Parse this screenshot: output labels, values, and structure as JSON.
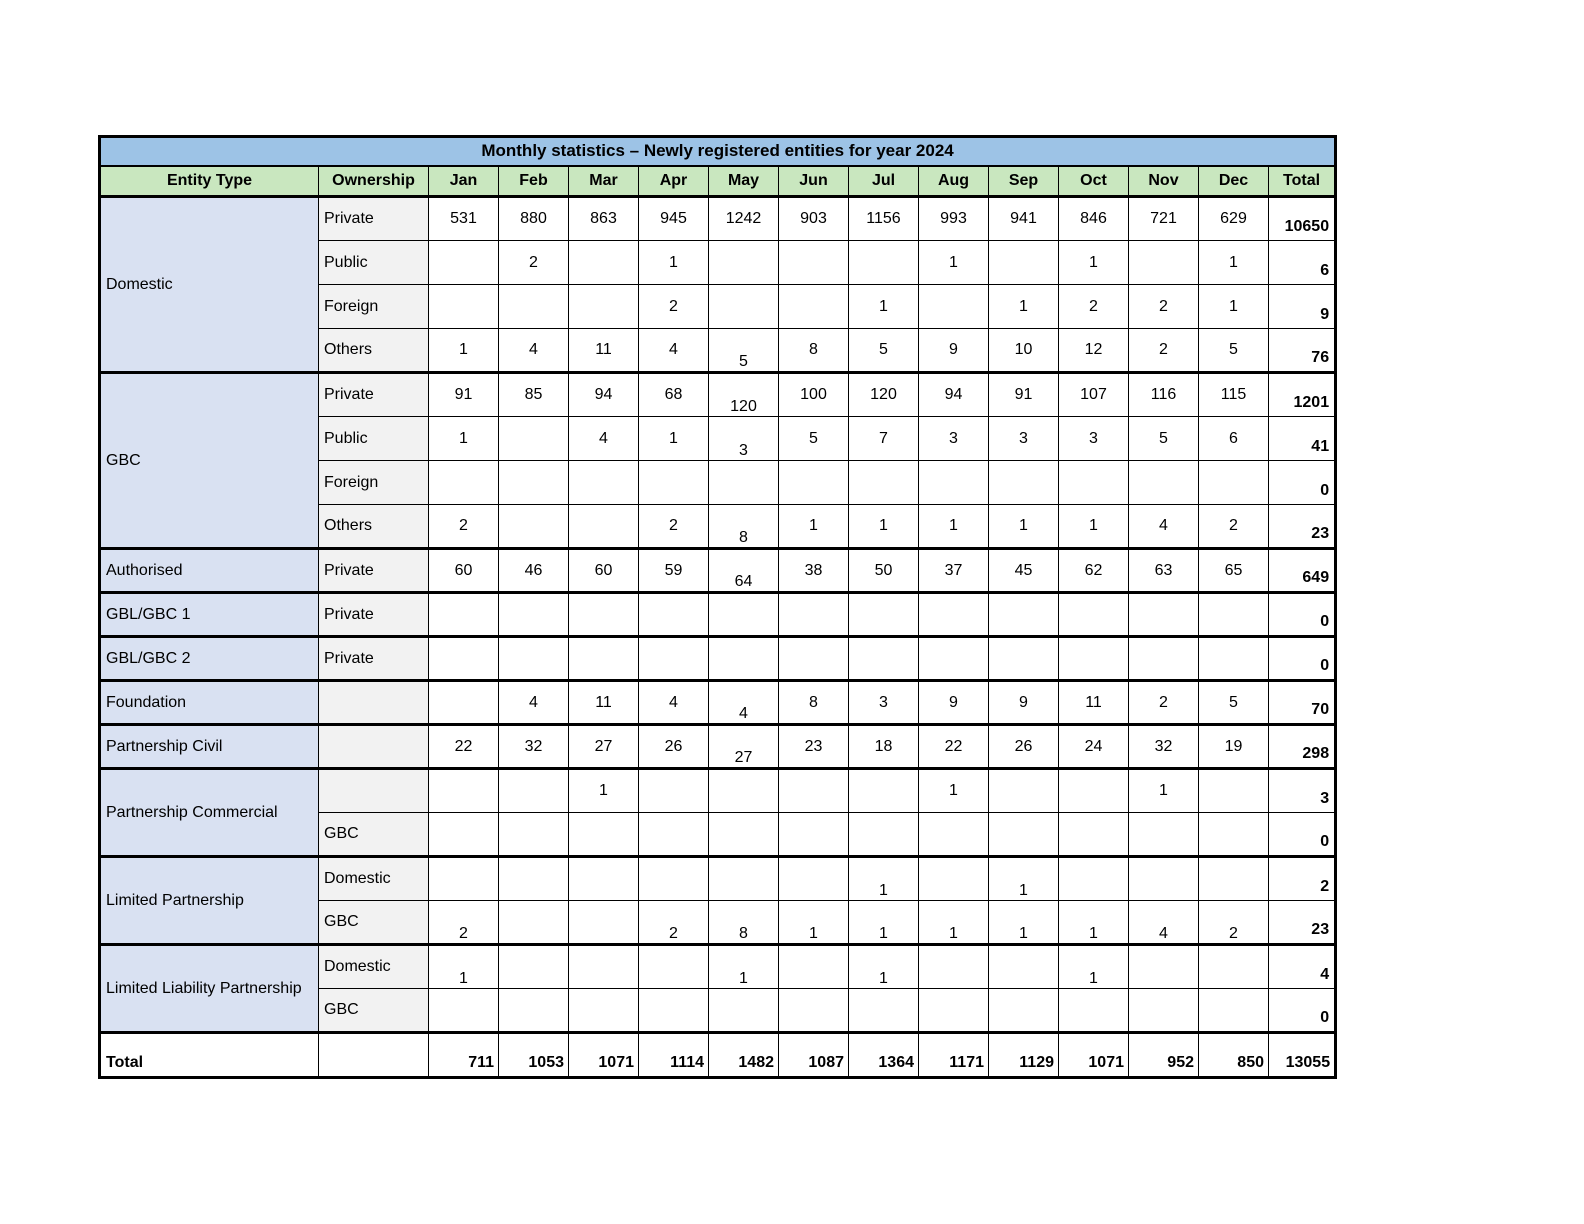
{
  "title": "Monthly statistics – Newly registered entities for year 2024",
  "columns": [
    "Entity Type",
    "Ownership",
    "Jan",
    "Feb",
    "Mar",
    "Apr",
    "May",
    "Jun",
    "Jul",
    "Aug",
    "Sep",
    "Oct",
    "Nov",
    "Dec",
    "Total"
  ],
  "colors": {
    "title_bg": "#9DC3E6",
    "header_bg": "#C9E7BF",
    "entity_bg": "#D9E1F2",
    "ownership_bg": "#F2F2F2",
    "border": "#000000"
  },
  "rows": [
    {
      "entity": "Domestic",
      "rowspan": 4,
      "ownership": "Private",
      "months": [
        "531",
        "880",
        "863",
        "945",
        "1242",
        "903",
        "1156",
        "993",
        "941",
        "846",
        "721",
        "629"
      ],
      "total": "10650"
    },
    {
      "ownership": "Public",
      "months": [
        "",
        "2",
        "",
        "1",
        "",
        "",
        "",
        "1",
        "",
        "1",
        "",
        "1"
      ],
      "total": "6"
    },
    {
      "ownership": "Foreign",
      "months": [
        "",
        "",
        "",
        "2",
        "",
        "",
        "1",
        "",
        "1",
        "2",
        "2",
        "1"
      ],
      "total": "9"
    },
    {
      "ownership": "Others",
      "months": [
        "1",
        "4",
        "11",
        "4",
        "5",
        "8",
        "5",
        "9",
        "10",
        "12",
        "2",
        "5"
      ],
      "total": "76"
    },
    {
      "entity": "GBC",
      "rowspan": 4,
      "ownership": "Private",
      "months": [
        "91",
        "85",
        "94",
        "68",
        "120",
        "100",
        "120",
        "94",
        "91",
        "107",
        "116",
        "115"
      ],
      "total": "1201"
    },
    {
      "ownership": "Public",
      "months": [
        "1",
        "",
        "4",
        "1",
        "3",
        "5",
        "7",
        "3",
        "3",
        "3",
        "5",
        "6"
      ],
      "total": "41"
    },
    {
      "ownership": "Foreign",
      "months": [
        "",
        "",
        "",
        "",
        "",
        "",
        "",
        "",
        "",
        "",
        "",
        ""
      ],
      "total": "0"
    },
    {
      "ownership": "Others",
      "months": [
        "2",
        "",
        "",
        "2",
        "8",
        "1",
        "1",
        "1",
        "1",
        "1",
        "4",
        "2"
      ],
      "total": "23"
    },
    {
      "entity": "Authorised",
      "rowspan": 1,
      "ownership": "Private",
      "months": [
        "60",
        "46",
        "60",
        "59",
        "64",
        "38",
        "50",
        "37",
        "45",
        "62",
        "63",
        "65"
      ],
      "total": "649"
    },
    {
      "entity": "GBL/GBC 1",
      "rowspan": 1,
      "ownership": "Private",
      "months": [
        "",
        "",
        "",
        "",
        "",
        "",
        "",
        "",
        "",
        "",
        "",
        ""
      ],
      "total": "0"
    },
    {
      "entity": "GBL/GBC 2",
      "rowspan": 1,
      "ownership": "Private",
      "months": [
        "",
        "",
        "",
        "",
        "",
        "",
        "",
        "",
        "",
        "",
        "",
        ""
      ],
      "total": "0"
    },
    {
      "entity": "Foundation",
      "rowspan": 1,
      "ownership": "",
      "months": [
        "",
        "4",
        "11",
        "4",
        "4",
        "8",
        "3",
        "9",
        "9",
        "11",
        "2",
        "5"
      ],
      "total": "70"
    },
    {
      "entity": "Partnership Civil",
      "rowspan": 1,
      "ownership": "",
      "months": [
        "22",
        "32",
        "27",
        "26",
        "27",
        "23",
        "18",
        "22",
        "26",
        "24",
        "32",
        "19"
      ],
      "total": "298"
    },
    {
      "entity": "Partnership Commercial",
      "rowspan": 2,
      "ownership": "",
      "months": [
        "",
        "",
        "1",
        "",
        "",
        "",
        "",
        "1",
        "",
        "",
        "1",
        ""
      ],
      "total": "3"
    },
    {
      "ownership": "GBC",
      "months": [
        "",
        "",
        "",
        "",
        "",
        "",
        "",
        "",
        "",
        "",
        "",
        ""
      ],
      "total": "0"
    },
    {
      "entity": "Limited Partnership",
      "rowspan": 2,
      "ownership": "Domestic",
      "months": [
        "",
        "",
        "",
        "",
        "",
        "",
        "1",
        "",
        "1",
        "",
        "",
        ""
      ],
      "total": "2"
    },
    {
      "ownership": "GBC",
      "months": [
        "2",
        "",
        "",
        "2",
        "8",
        "1",
        "1",
        "1",
        "1",
        "1",
        "4",
        "2"
      ],
      "total": "23"
    },
    {
      "entity": "Limited Liability Partnership",
      "rowspan": 2,
      "ownership": "Domestic",
      "months": [
        "1",
        "",
        "",
        "",
        "1",
        "",
        "1",
        "",
        "",
        "1",
        "",
        ""
      ],
      "total": "4"
    },
    {
      "ownership": "GBC",
      "months": [
        "",
        "",
        "",
        "",
        "",
        "",
        "",
        "",
        "",
        "",
        "",
        ""
      ],
      "total": "0"
    }
  ],
  "total_row": {
    "label": "Total",
    "months": [
      "711",
      "1053",
      "1071",
      "1114",
      "1482",
      "1087",
      "1364",
      "1171",
      "1129",
      "1071",
      "952",
      "850"
    ],
    "total": "13055"
  }
}
